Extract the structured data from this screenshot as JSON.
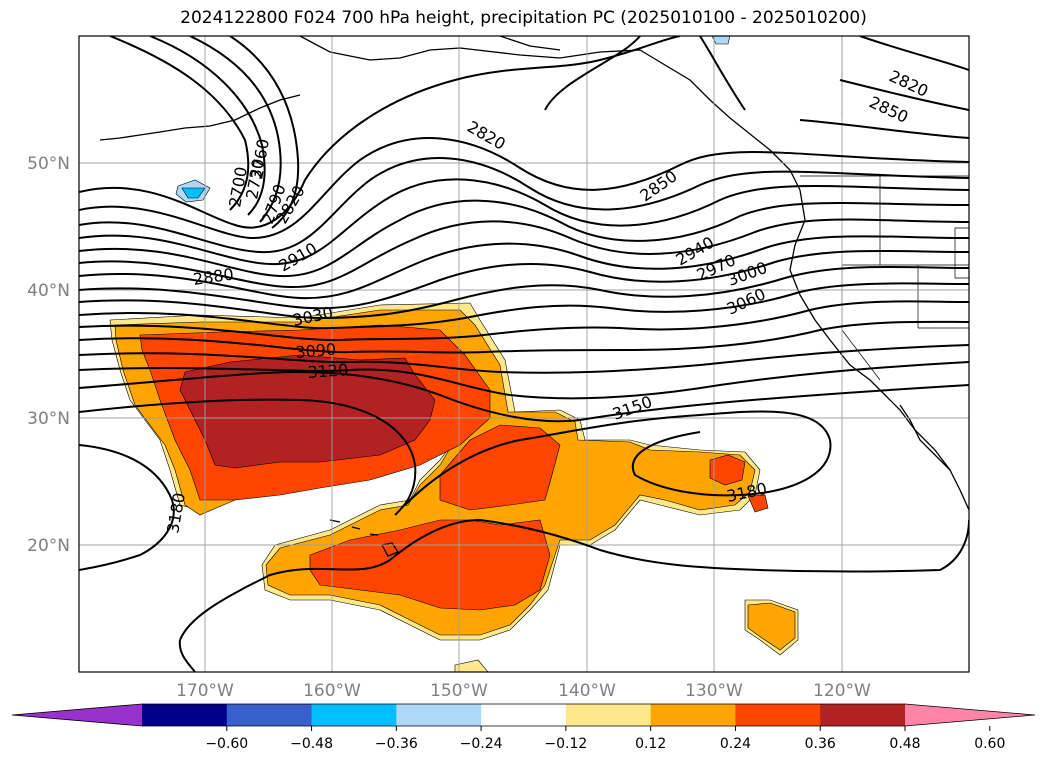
{
  "title": "2024122800 F024 700 hPa height, precipitation PC (2025010100 - 2025010200)",
  "map": {
    "lon_labels": [
      "170°W",
      "160°W",
      "150°W",
      "140°W",
      "130°W",
      "120°W"
    ],
    "lat_labels": [
      "50°N",
      "40°N",
      "30°N",
      "20°N"
    ],
    "contour_labels": [
      "2700",
      "2730",
      "2760",
      "2790",
      "2820",
      "2820",
      "2820",
      "2850",
      "2850",
      "2880",
      "2910",
      "2940",
      "2970",
      "3000",
      "3030",
      "3060",
      "3090",
      "3120",
      "3150",
      "3180",
      "3180"
    ]
  },
  "colorbar": {
    "ticks": [
      "−0.60",
      "−0.48",
      "−0.36",
      "−0.24",
      "−0.12",
      "0.12",
      "0.24",
      "0.36",
      "0.48",
      "0.60"
    ],
    "colors": [
      "#9932cc",
      "#00008b",
      "#3a5fcd",
      "#00bfff",
      "#add8f6",
      "#ffffff",
      "#ffe88a",
      "#ffa500",
      "#ff4500",
      "#b22222",
      "#ff85a8"
    ]
  }
}
